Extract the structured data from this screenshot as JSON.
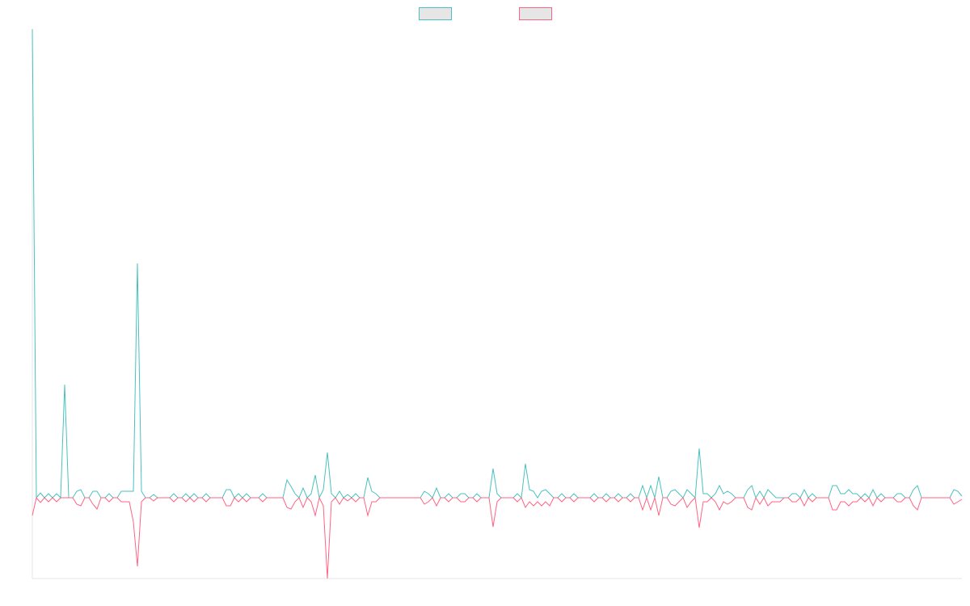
{
  "chart_data": {
    "type": "line",
    "categories": [
      null,
      null,
      null,
      null,
      null,
      null,
      null,
      null,
      null,
      null,
      null,
      null,
      null,
      null,
      null,
      null,
      null,
      null,
      null,
      null,
      null,
      null,
      null,
      null,
      null,
      null,
      null,
      null,
      null,
      null,
      null,
      null,
      null,
      null,
      null,
      null,
      null,
      null,
      null,
      null,
      null,
      null,
      null,
      null,
      null,
      null,
      null,
      null,
      null,
      null,
      null,
      null,
      null,
      null,
      null,
      null,
      null,
      null,
      null,
      null,
      null,
      null,
      null,
      null,
      null,
      null,
      null,
      null,
      null,
      null,
      null,
      null,
      null,
      null,
      null,
      null,
      null,
      null,
      null,
      null,
      null,
      null,
      null,
      null,
      null,
      null,
      null,
      null,
      null,
      null,
      null,
      null,
      null,
      null,
      null,
      null,
      null,
      null,
      null,
      null,
      null,
      null,
      null,
      null,
      null,
      null,
      null,
      null,
      null,
      null,
      null,
      null,
      null,
      null,
      null,
      null,
      null,
      null,
      null,
      null,
      null,
      null,
      null,
      null,
      null,
      null,
      null,
      null,
      null,
      null,
      null,
      null,
      null,
      null,
      null,
      null,
      null,
      null,
      null,
      null,
      null,
      null,
      null,
      null,
      null,
      null,
      null,
      null,
      null,
      null,
      null,
      null,
      null,
      null,
      null,
      null,
      null,
      null,
      null,
      null,
      null,
      null,
      null,
      null,
      null,
      null,
      null,
      null,
      null,
      null,
      null,
      null,
      null,
      null,
      null,
      null,
      null,
      null,
      null,
      null,
      null,
      null,
      null,
      null,
      null,
      null,
      null,
      null,
      null,
      null,
      null,
      null,
      null,
      null,
      null,
      null,
      null,
      null,
      null,
      null,
      null,
      null,
      null,
      null,
      null,
      null,
      null,
      null,
      null,
      null,
      null,
      null,
      null,
      null,
      null,
      null,
      null,
      null,
      null,
      null,
      null,
      null,
      null,
      null,
      null,
      null,
      null,
      null,
      null,
      null,
      null
    ],
    "ylim": [
      -100,
      580
    ],
    "series": [
      {
        "color": "#4bc0c0",
        "values": [
          580,
          0,
          6,
          0,
          5,
          0,
          5,
          0,
          140,
          0,
          0,
          8,
          10,
          0,
          0,
          8,
          8,
          0,
          0,
          5,
          0,
          0,
          8,
          8,
          8,
          8,
          290,
          8,
          0,
          0,
          4,
          0,
          0,
          0,
          0,
          5,
          0,
          0,
          5,
          0,
          5,
          0,
          0,
          5,
          0,
          0,
          0,
          0,
          10,
          10,
          0,
          5,
          0,
          5,
          0,
          0,
          0,
          5,
          0,
          0,
          0,
          0,
          0,
          22,
          14,
          5,
          0,
          12,
          0,
          5,
          28,
          0,
          10,
          56,
          5,
          0,
          8,
          0,
          4,
          0,
          5,
          0,
          0,
          25,
          8,
          5,
          0,
          0,
          0,
          0,
          0,
          0,
          0,
          0,
          0,
          0,
          0,
          8,
          5,
          0,
          12,
          0,
          0,
          5,
          0,
          0,
          5,
          5,
          0,
          0,
          5,
          0,
          0,
          0,
          36,
          5,
          0,
          0,
          0,
          0,
          5,
          0,
          42,
          10,
          8,
          0,
          8,
          10,
          5,
          0,
          0,
          5,
          0,
          0,
          5,
          0,
          0,
          0,
          0,
          5,
          0,
          0,
          5,
          0,
          0,
          5,
          0,
          0,
          5,
          0,
          0,
          15,
          0,
          15,
          0,
          26,
          0,
          0,
          8,
          10,
          5,
          0,
          10,
          5,
          0,
          61,
          5,
          5,
          0,
          5,
          15,
          5,
          8,
          5,
          0,
          0,
          0,
          10,
          15,
          0,
          8,
          0,
          10,
          5,
          0,
          0,
          0,
          0,
          5,
          5,
          0,
          10,
          0,
          5,
          0,
          0,
          0,
          0,
          15,
          15,
          5,
          5,
          10,
          5,
          5,
          0,
          5,
          0,
          10,
          0,
          5,
          0,
          0,
          0,
          5,
          5,
          0,
          0,
          10,
          15,
          0,
          0,
          0,
          0,
          0,
          0,
          0,
          0,
          10,
          8,
          2
        ]
      },
      {
        "color": "#ff6384",
        "values": [
          -22,
          0,
          -6,
          0,
          -5,
          0,
          -5,
          0,
          0,
          0,
          0,
          -8,
          -10,
          0,
          0,
          -8,
          -14,
          0,
          0,
          -5,
          0,
          0,
          -5,
          -5,
          -5,
          -30,
          -85,
          -5,
          0,
          0,
          -4,
          0,
          0,
          0,
          0,
          -5,
          0,
          0,
          -5,
          0,
          -5,
          0,
          0,
          -5,
          0,
          0,
          0,
          0,
          -10,
          -10,
          0,
          -5,
          0,
          -5,
          0,
          0,
          0,
          -5,
          0,
          0,
          0,
          0,
          0,
          -12,
          -14,
          -5,
          0,
          -12,
          0,
          -5,
          -22,
          0,
          -10,
          -100,
          -5,
          0,
          -8,
          0,
          -4,
          0,
          -5,
          0,
          0,
          -22,
          -5,
          -5,
          0,
          0,
          0,
          0,
          0,
          0,
          0,
          0,
          0,
          0,
          0,
          -8,
          -5,
          0,
          -10,
          0,
          0,
          -5,
          0,
          0,
          -5,
          -5,
          0,
          0,
          -5,
          0,
          0,
          0,
          -36,
          -5,
          0,
          0,
          0,
          0,
          -5,
          0,
          -12,
          -5,
          -10,
          -5,
          -10,
          -5,
          -10,
          0,
          0,
          -5,
          0,
          0,
          -5,
          0,
          0,
          0,
          0,
          -5,
          0,
          0,
          -5,
          0,
          0,
          -5,
          0,
          0,
          -5,
          0,
          0,
          -15,
          0,
          -15,
          0,
          -22,
          0,
          0,
          -8,
          -10,
          -5,
          0,
          -12,
          -5,
          0,
          -37,
          -5,
          -5,
          0,
          -5,
          -15,
          -5,
          -8,
          -5,
          0,
          0,
          0,
          -12,
          -15,
          0,
          -8,
          0,
          -10,
          -5,
          -5,
          -5,
          0,
          0,
          -5,
          -5,
          0,
          -10,
          0,
          -5,
          0,
          0,
          0,
          0,
          -15,
          -15,
          -5,
          -5,
          -10,
          -5,
          -5,
          0,
          -5,
          0,
          -10,
          0,
          -5,
          0,
          0,
          0,
          -5,
          -5,
          0,
          0,
          -10,
          -15,
          0,
          0,
          0,
          0,
          0,
          0,
          0,
          0,
          -8,
          -5,
          -2
        ]
      }
    ]
  }
}
